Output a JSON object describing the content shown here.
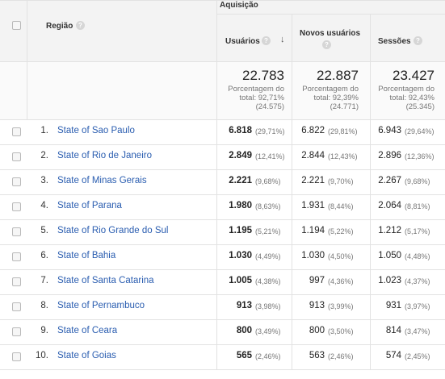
{
  "header": {
    "group_label": "Aquisição",
    "region_label": "Região",
    "users_label": "Usuários",
    "new_users_label": "Novos usuários",
    "sessions_label": "Sessões",
    "sort_icon": "arrow-down-icon",
    "help_icon": "question-icon"
  },
  "totals": {
    "users": {
      "value": "22.783",
      "line1": "Porcentagem do",
      "line2": "total: 92,71%",
      "line3": "(24.575)"
    },
    "new_users": {
      "value": "22.887",
      "line1": "Porcentagem do",
      "line2": "total: 92,39%",
      "line3": "(24.771)"
    },
    "sessions": {
      "value": "23.427",
      "line1": "Porcentagem do",
      "line2": "total: 92,43%",
      "line3": "(25.345)"
    }
  },
  "rows": [
    {
      "idx": "1.",
      "region": "State of Sao Paulo",
      "users": "6.818",
      "users_pct": "(29,71%)",
      "new_users": "6.822",
      "new_users_pct": "(29,81%)",
      "sessions": "6.943",
      "sessions_pct": "(29,64%)"
    },
    {
      "idx": "2.",
      "region": "State of Rio de Janeiro",
      "users": "2.849",
      "users_pct": "(12,41%)",
      "new_users": "2.844",
      "new_users_pct": "(12,43%)",
      "sessions": "2.896",
      "sessions_pct": "(12,36%)"
    },
    {
      "idx": "3.",
      "region": "State of Minas Gerais",
      "users": "2.221",
      "users_pct": "(9,68%)",
      "new_users": "2.221",
      "new_users_pct": "(9,70%)",
      "sessions": "2.267",
      "sessions_pct": "(9,68%)"
    },
    {
      "idx": "4.",
      "region": "State of Parana",
      "users": "1.980",
      "users_pct": "(8,63%)",
      "new_users": "1.931",
      "new_users_pct": "(8,44%)",
      "sessions": "2.064",
      "sessions_pct": "(8,81%)"
    },
    {
      "idx": "5.",
      "region": "State of Rio Grande do Sul",
      "users": "1.195",
      "users_pct": "(5,21%)",
      "new_users": "1.194",
      "new_users_pct": "(5,22%)",
      "sessions": "1.212",
      "sessions_pct": "(5,17%)"
    },
    {
      "idx": "6.",
      "region": "State of Bahia",
      "users": "1.030",
      "users_pct": "(4,49%)",
      "new_users": "1.030",
      "new_users_pct": "(4,50%)",
      "sessions": "1.050",
      "sessions_pct": "(4,48%)"
    },
    {
      "idx": "7.",
      "region": "State of Santa Catarina",
      "users": "1.005",
      "users_pct": "(4,38%)",
      "new_users": "997",
      "new_users_pct": "(4,36%)",
      "sessions": "1.023",
      "sessions_pct": "(4,37%)"
    },
    {
      "idx": "8.",
      "region": "State of Pernambuco",
      "users": "913",
      "users_pct": "(3,98%)",
      "new_users": "913",
      "new_users_pct": "(3,99%)",
      "sessions": "931",
      "sessions_pct": "(3,97%)"
    },
    {
      "idx": "9.",
      "region": "State of Ceara",
      "users": "800",
      "users_pct": "(3,49%)",
      "new_users": "800",
      "new_users_pct": "(3,50%)",
      "sessions": "814",
      "sessions_pct": "(3,47%)"
    },
    {
      "idx": "10.",
      "region": "State of Goias",
      "users": "565",
      "users_pct": "(2,46%)",
      "new_users": "563",
      "new_users_pct": "(2,46%)",
      "sessions": "574",
      "sessions_pct": "(2,45%)"
    }
  ]
}
